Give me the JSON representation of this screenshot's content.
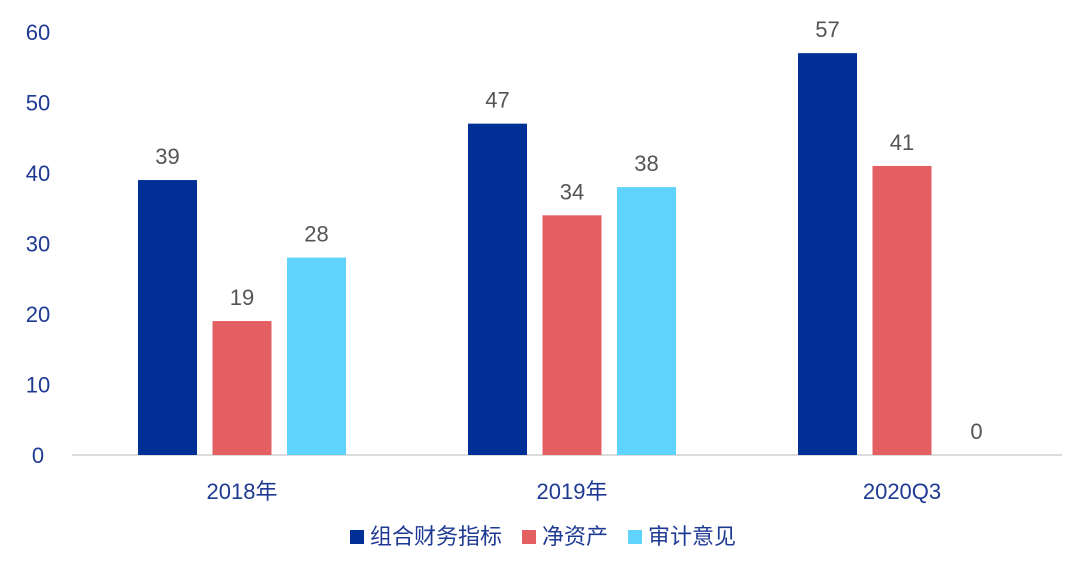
{
  "chart_data": {
    "type": "bar",
    "categories": [
      "2018年",
      "2019年",
      "2020Q3"
    ],
    "series": [
      {
        "name": "组合财务指标",
        "values": [
          39,
          47,
          57
        ],
        "color": "#002f96"
      },
      {
        "name": "净资产",
        "values": [
          19,
          34,
          41
        ],
        "color": "#e35f62"
      },
      {
        "name": "审计意见",
        "values": [
          28,
          38,
          0
        ],
        "color": "#5fd3fb"
      }
    ],
    "title": "",
    "xlabel": "",
    "ylabel": "",
    "ylim": [
      0,
      60
    ],
    "yticks": [
      "0",
      "10",
      "20",
      "30",
      "40",
      "50",
      "60"
    ],
    "grid": false,
    "legend": "bottom",
    "data_labels": true
  }
}
